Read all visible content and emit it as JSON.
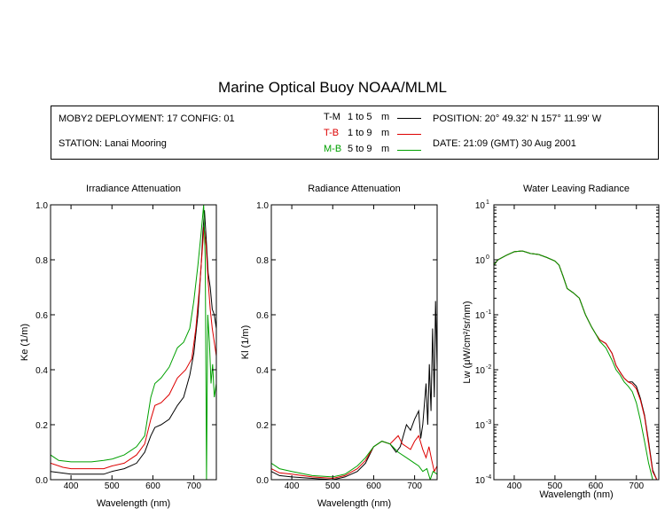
{
  "title": "Marine Optical Buoy NOAA/MLML",
  "info": {
    "deployment": "MOBY2 DEPLOYMENT: 17 CONFIG: 01",
    "station": "STATION: Lanai Mooring",
    "position": "POSITION: 20° 49.32' N   157° 11.99' W",
    "date": "DATE: 21:09 (GMT) 30 Aug 2001"
  },
  "legend": [
    {
      "code": "T-M",
      "range": "1 to 5",
      "unit": "m",
      "color": "#000000"
    },
    {
      "code": "T-B",
      "range": "1 to 9",
      "unit": "m",
      "color": "#dd0000"
    },
    {
      "code": "M-B",
      "range": "5 to 9",
      "unit": "m",
      "color": "#00a000"
    }
  ],
  "chart_data": [
    {
      "type": "line",
      "title": "Irradiance Attenuation",
      "xlabel": "Wavelength (nm)",
      "ylabel": "Ke  (1/m)",
      "xlim": [
        350,
        755
      ],
      "ylim": [
        0,
        1.0
      ],
      "xticks": [
        400,
        500,
        600,
        700
      ],
      "yticks": [
        "0.0",
        "0.2",
        "0.4",
        "0.6",
        "0.8",
        "1.0"
      ],
      "series": [
        {
          "name": "T-M",
          "color": "#000000",
          "points": [
            [
              350,
              0.03
            ],
            [
              400,
              0.02
            ],
            [
              450,
              0.02
            ],
            [
              480,
              0.02
            ],
            [
              500,
              0.03
            ],
            [
              530,
              0.04
            ],
            [
              560,
              0.06
            ],
            [
              580,
              0.1
            ],
            [
              595,
              0.16
            ],
            [
              605,
              0.19
            ],
            [
              620,
              0.2
            ],
            [
              640,
              0.22
            ],
            [
              660,
              0.27
            ],
            [
              675,
              0.3
            ],
            [
              690,
              0.38
            ],
            [
              700,
              0.46
            ],
            [
              710,
              0.6
            ],
            [
              718,
              0.78
            ],
            [
              722,
              0.9
            ],
            [
              726,
              0.98
            ],
            [
              730,
              0.88
            ],
            [
              735,
              0.75
            ],
            [
              740,
              0.7
            ],
            [
              745,
              0.62
            ],
            [
              750,
              0.6
            ],
            [
              755,
              0.55
            ]
          ]
        },
        {
          "name": "T-B",
          "color": "#dd0000",
          "points": [
            [
              350,
              0.06
            ],
            [
              380,
              0.045
            ],
            [
              400,
              0.04
            ],
            [
              450,
              0.04
            ],
            [
              480,
              0.04
            ],
            [
              500,
              0.05
            ],
            [
              530,
              0.06
            ],
            [
              560,
              0.09
            ],
            [
              580,
              0.13
            ],
            [
              595,
              0.22
            ],
            [
              605,
              0.27
            ],
            [
              620,
              0.28
            ],
            [
              640,
              0.31
            ],
            [
              660,
              0.37
            ],
            [
              680,
              0.4
            ],
            [
              695,
              0.44
            ],
            [
              705,
              0.55
            ],
            [
              715,
              0.72
            ],
            [
              720,
              0.82
            ],
            [
              725,
              0.92
            ],
            [
              730,
              0.85
            ],
            [
              735,
              0.72
            ],
            [
              740,
              0.62
            ],
            [
              745,
              0.55
            ],
            [
              750,
              0.5
            ],
            [
              755,
              0.45
            ]
          ]
        },
        {
          "name": "M-B",
          "color": "#00a000",
          "points": [
            [
              350,
              0.09
            ],
            [
              370,
              0.07
            ],
            [
              400,
              0.065
            ],
            [
              450,
              0.065
            ],
            [
              480,
              0.07
            ],
            [
              500,
              0.075
            ],
            [
              530,
              0.09
            ],
            [
              560,
              0.12
            ],
            [
              580,
              0.16
            ],
            [
              595,
              0.3
            ],
            [
              605,
              0.35
            ],
            [
              620,
              0.37
            ],
            [
              640,
              0.41
            ],
            [
              660,
              0.48
            ],
            [
              675,
              0.5
            ],
            [
              690,
              0.55
            ],
            [
              700,
              0.65
            ],
            [
              710,
              0.78
            ],
            [
              718,
              0.9
            ],
            [
              724,
              1.0
            ],
            [
              728,
              0.8
            ],
            [
              731,
              0.0
            ],
            [
              734,
              0.6
            ],
            [
              738,
              0.5
            ],
            [
              742,
              0.35
            ],
            [
              746,
              0.42
            ],
            [
              750,
              0.3
            ],
            [
              755,
              0.35
            ]
          ]
        }
      ]
    },
    {
      "type": "line",
      "title": "Radiance Attenuation",
      "xlabel": "Wavelength (nm)",
      "ylabel": "Kl  (1/m)",
      "xlim": [
        350,
        755
      ],
      "ylim": [
        0,
        1.0
      ],
      "xticks": [
        400,
        500,
        600,
        700
      ],
      "yticks": [
        "0.0",
        "0.2",
        "0.4",
        "0.6",
        "0.8",
        "1.0"
      ],
      "series": [
        {
          "name": "T-M",
          "color": "#000000",
          "points": [
            [
              350,
              0.03
            ],
            [
              370,
              0.015
            ],
            [
              400,
              0.01
            ],
            [
              450,
              0.005
            ],
            [
              500,
              0.0
            ],
            [
              530,
              0.01
            ],
            [
              560,
              0.03
            ],
            [
              580,
              0.06
            ],
            [
              600,
              0.12
            ],
            [
              620,
              0.14
            ],
            [
              640,
              0.13
            ],
            [
              655,
              0.1
            ],
            [
              665,
              0.12
            ],
            [
              680,
              0.2
            ],
            [
              690,
              0.18
            ],
            [
              700,
              0.22
            ],
            [
              710,
              0.25
            ],
            [
              715,
              0.15
            ],
            [
              720,
              0.2
            ],
            [
              728,
              0.35
            ],
            [
              732,
              0.2
            ],
            [
              736,
              0.42
            ],
            [
              740,
              0.25
            ],
            [
              744,
              0.55
            ],
            [
              748,
              0.3
            ],
            [
              751,
              0.65
            ],
            [
              755,
              0.4
            ]
          ]
        },
        {
          "name": "T-B",
          "color": "#dd0000",
          "points": [
            [
              350,
              0.04
            ],
            [
              370,
              0.025
            ],
            [
              400,
              0.02
            ],
            [
              450,
              0.01
            ],
            [
              500,
              0.005
            ],
            [
              530,
              0.015
            ],
            [
              560,
              0.04
            ],
            [
              580,
              0.07
            ],
            [
              600,
              0.12
            ],
            [
              620,
              0.14
            ],
            [
              640,
              0.13
            ],
            [
              660,
              0.16
            ],
            [
              670,
              0.13
            ],
            [
              690,
              0.11
            ],
            [
              700,
              0.14
            ],
            [
              710,
              0.16
            ],
            [
              720,
              0.11
            ],
            [
              728,
              0.08
            ],
            [
              735,
              0.12
            ],
            [
              742,
              0.07
            ],
            [
              748,
              0.03
            ],
            [
              755,
              0.05
            ]
          ]
        },
        {
          "name": "M-B",
          "color": "#00a000",
          "points": [
            [
              350,
              0.06
            ],
            [
              370,
              0.04
            ],
            [
              400,
              0.03
            ],
            [
              450,
              0.015
            ],
            [
              500,
              0.01
            ],
            [
              530,
              0.02
            ],
            [
              560,
              0.05
            ],
            [
              580,
              0.08
            ],
            [
              600,
              0.12
            ],
            [
              620,
              0.14
            ],
            [
              640,
              0.13
            ],
            [
              660,
              0.1
            ],
            [
              680,
              0.08
            ],
            [
              700,
              0.06
            ],
            [
              710,
              0.05
            ],
            [
              720,
              0.03
            ],
            [
              730,
              0.04
            ],
            [
              738,
              0.0
            ],
            [
              745,
              0.03
            ],
            [
              755,
              0.02
            ]
          ]
        }
      ]
    },
    {
      "type": "line",
      "title": "Water Leaving Radiance",
      "xlabel": "Wavelength (nm)",
      "ylabel": "Lw  (μW/cm²/sr/nm)",
      "xlim": [
        350,
        755
      ],
      "ylim_log10": [
        -4,
        1
      ],
      "yscale": "log",
      "xticks": [
        400,
        500,
        600,
        700
      ],
      "yticks": [
        {
          "base": "10",
          "exp": "1",
          "value": 1
        },
        {
          "base": "10",
          "exp": "0",
          "value": 0
        },
        {
          "base": "10",
          "exp": "-1",
          "value": -1
        },
        {
          "base": "10",
          "exp": "-2",
          "value": -2
        },
        {
          "base": "10",
          "exp": "-3",
          "value": -3
        },
        {
          "base": "10",
          "exp": "-4",
          "value": -4
        }
      ],
      "series": [
        {
          "name": "T-M",
          "color": "#000000",
          "points": [
            [
              350,
              0.8
            ],
            [
              360,
              1.0
            ],
            [
              380,
              1.2
            ],
            [
              400,
              1.4
            ],
            [
              420,
              1.45
            ],
            [
              440,
              1.3
            ],
            [
              460,
              1.25
            ],
            [
              480,
              1.1
            ],
            [
              500,
              0.95
            ],
            [
              510,
              0.8
            ],
            [
              520,
              0.5
            ],
            [
              530,
              0.3
            ],
            [
              545,
              0.25
            ],
            [
              560,
              0.2
            ],
            [
              575,
              0.1
            ],
            [
              590,
              0.06
            ],
            [
              600,
              0.045
            ],
            [
              610,
              0.035
            ],
            [
              625,
              0.03
            ],
            [
              640,
              0.02
            ],
            [
              650,
              0.012
            ],
            [
              660,
              0.009
            ],
            [
              670,
              0.007
            ],
            [
              680,
              0.006
            ],
            [
              690,
              0.006
            ],
            [
              700,
              0.005
            ],
            [
              710,
              0.003
            ],
            [
              720,
              0.0015
            ],
            [
              730,
              0.0005
            ],
            [
              740,
              0.00015
            ],
            [
              750,
              0.0001
            ]
          ]
        },
        {
          "name": "T-B",
          "color": "#dd0000",
          "points": [
            [
              350,
              0.8
            ],
            [
              360,
              1.0
            ],
            [
              380,
              1.2
            ],
            [
              400,
              1.4
            ],
            [
              420,
              1.45
            ],
            [
              440,
              1.3
            ],
            [
              460,
              1.25
            ],
            [
              480,
              1.1
            ],
            [
              500,
              0.95
            ],
            [
              510,
              0.8
            ],
            [
              520,
              0.5
            ],
            [
              530,
              0.3
            ],
            [
              545,
              0.25
            ],
            [
              560,
              0.2
            ],
            [
              575,
              0.1
            ],
            [
              590,
              0.06
            ],
            [
              600,
              0.045
            ],
            [
              610,
              0.035
            ],
            [
              625,
              0.03
            ],
            [
              640,
              0.02
            ],
            [
              650,
              0.012
            ],
            [
              660,
              0.009
            ],
            [
              670,
              0.007
            ],
            [
              680,
              0.006
            ],
            [
              690,
              0.0055
            ],
            [
              700,
              0.0045
            ],
            [
              710,
              0.0028
            ],
            [
              720,
              0.0014
            ],
            [
              730,
              0.00045
            ],
            [
              740,
              0.00014
            ],
            [
              750,
              0.0001
            ]
          ]
        },
        {
          "name": "M-B",
          "color": "#00a000",
          "points": [
            [
              350,
              0.8
            ],
            [
              360,
              1.0
            ],
            [
              380,
              1.2
            ],
            [
              400,
              1.4
            ],
            [
              420,
              1.45
            ],
            [
              440,
              1.3
            ],
            [
              460,
              1.25
            ],
            [
              480,
              1.1
            ],
            [
              500,
              0.95
            ],
            [
              510,
              0.8
            ],
            [
              520,
              0.5
            ],
            [
              530,
              0.3
            ],
            [
              545,
              0.25
            ],
            [
              560,
              0.2
            ],
            [
              575,
              0.1
            ],
            [
              590,
              0.06
            ],
            [
              600,
              0.045
            ],
            [
              610,
              0.033
            ],
            [
              625,
              0.025
            ],
            [
              640,
              0.015
            ],
            [
              650,
              0.01
            ],
            [
              660,
              0.008
            ],
            [
              670,
              0.006
            ],
            [
              680,
              0.005
            ],
            [
              690,
              0.004
            ],
            [
              700,
              0.0025
            ],
            [
              710,
              0.0012
            ],
            [
              720,
              0.0005
            ],
            [
              730,
              0.0002
            ],
            [
              740,
              0.0001
            ],
            [
              750,
              0.0001
            ]
          ]
        }
      ]
    }
  ]
}
